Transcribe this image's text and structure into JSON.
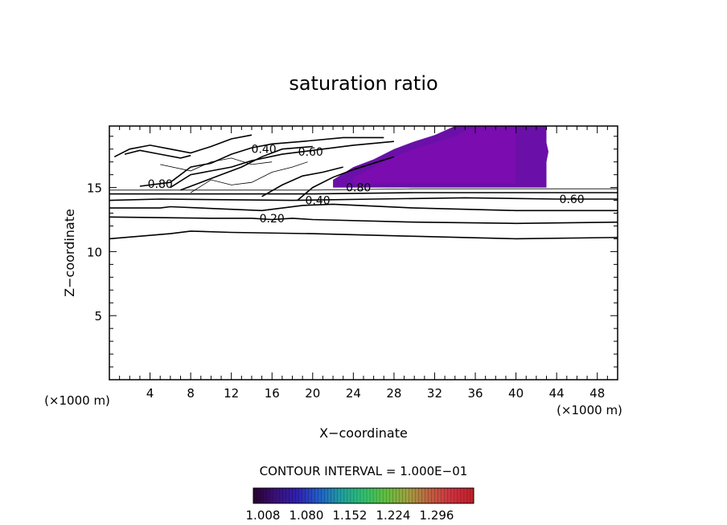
{
  "chart_data": {
    "type": "contour",
    "title": "saturation ratio",
    "xlabel": "X−coordinate",
    "ylabel": "Z−coordinate",
    "x_unit_left": "(×1000 m)",
    "x_unit_right": "(×1000 m)",
    "xlim": [
      0,
      50
    ],
    "ylim": [
      0,
      19.8
    ],
    "xticks": [
      4,
      8,
      12,
      16,
      20,
      24,
      28,
      32,
      36,
      40,
      44,
      48
    ],
    "yticks": [
      5,
      10,
      15
    ],
    "contour_interval_text": "CONTOUR INTERVAL = 1.000E−01",
    "contour_labels": [
      {
        "text": "0.40",
        "x": 15.2,
        "z": 18.0
      },
      {
        "text": "0.60",
        "x": 19.8,
        "z": 17.8
      },
      {
        "text": "0.80",
        "x": 5.0,
        "z": 15.3
      },
      {
        "text": "0.80",
        "x": 24.5,
        "z": 15.0
      },
      {
        "text": "0.40",
        "x": 20.5,
        "z": 14.0
      },
      {
        "text": "0.20",
        "x": 16.0,
        "z": 12.6
      },
      {
        "text": "0.60",
        "x": 45.5,
        "z": 14.1
      }
    ],
    "contour_lines": [
      {
        "level": 0.2,
        "points": [
          [
            0,
            12.7
          ],
          [
            10,
            12.6
          ],
          [
            14,
            12.6
          ],
          [
            16,
            12.5
          ],
          [
            18,
            12.6
          ],
          [
            20,
            12.5
          ],
          [
            30,
            12.3
          ],
          [
            40,
            12.2
          ],
          [
            50,
            12.3
          ]
        ]
      },
      {
        "level": 0.2,
        "points": [
          [
            0,
            11.0
          ],
          [
            6,
            11.4
          ],
          [
            8,
            11.6
          ],
          [
            12,
            11.5
          ],
          [
            20,
            11.4
          ],
          [
            30,
            11.2
          ],
          [
            40,
            11.0
          ],
          [
            50,
            11.1
          ]
        ]
      },
      {
        "level": 0.4,
        "points": [
          [
            0,
            13.4
          ],
          [
            5,
            13.4
          ],
          [
            6,
            13.5
          ],
          [
            15,
            13.2
          ],
          [
            19,
            13.6
          ],
          [
            22,
            13.7
          ],
          [
            30,
            13.4
          ],
          [
            40,
            13.2
          ],
          [
            50,
            13.2
          ]
        ]
      },
      {
        "level": 0.6,
        "points": [
          [
            0,
            14.0
          ],
          [
            5,
            14.1
          ],
          [
            18,
            14.0
          ],
          [
            26,
            14.1
          ],
          [
            35,
            14.2
          ],
          [
            44,
            14.1
          ],
          [
            50,
            14.1
          ]
        ]
      },
      {
        "level": 0.8,
        "points": [
          [
            0,
            14.5
          ],
          [
            5,
            14.5
          ],
          [
            20,
            14.5
          ],
          [
            30,
            14.6
          ],
          [
            40,
            14.6
          ],
          [
            50,
            14.6
          ]
        ]
      },
      {
        "level": 0.9,
        "points": [
          [
            0,
            14.8
          ],
          [
            20,
            14.8
          ],
          [
            30,
            14.9
          ],
          [
            40,
            14.9
          ],
          [
            50,
            14.9
          ]
        ]
      },
      {
        "level": 0.8,
        "points": [
          [
            3,
            15.1
          ],
          [
            6,
            15.4
          ],
          [
            8,
            16.6
          ],
          [
            10,
            16.9
          ],
          [
            12,
            17.6
          ],
          [
            14,
            18.1
          ],
          [
            16,
            18.4
          ],
          [
            19,
            18.6
          ],
          [
            23,
            18.9
          ],
          [
            27,
            18.9
          ]
        ]
      },
      {
        "level": 0.6,
        "points": [
          [
            6,
            15.0
          ],
          [
            8,
            16.0
          ],
          [
            10,
            16.3
          ],
          [
            12,
            16.6
          ],
          [
            14,
            17.1
          ],
          [
            17,
            17.6
          ],
          [
            20,
            17.9
          ],
          [
            24,
            18.3
          ],
          [
            28,
            18.6
          ]
        ]
      },
      {
        "level": 0.4,
        "points": [
          [
            7,
            14.8
          ],
          [
            9,
            15.4
          ],
          [
            11,
            16.0
          ],
          [
            13,
            16.6
          ],
          [
            15,
            17.4
          ],
          [
            17,
            18.0
          ],
          [
            20,
            18.2
          ]
        ]
      },
      {
        "level": 0.6,
        "points": [
          [
            18.5,
            14.0
          ],
          [
            20,
            15.0
          ],
          [
            22,
            15.8
          ],
          [
            24,
            16.4
          ],
          [
            26,
            16.9
          ],
          [
            28,
            17.4
          ]
        ]
      },
      {
        "level": 0.4,
        "points": [
          [
            15,
            14.3
          ],
          [
            17,
            15.2
          ],
          [
            19,
            15.9
          ],
          [
            21,
            16.2
          ],
          [
            23,
            16.6
          ]
        ]
      },
      {
        "level": 0.6,
        "points": [
          [
            0.5,
            17.4
          ],
          [
            2,
            18.0
          ],
          [
            4,
            18.3
          ],
          [
            6,
            18.0
          ],
          [
            8,
            17.7
          ],
          [
            10,
            18.2
          ],
          [
            12,
            18.8
          ],
          [
            14,
            19.1
          ]
        ]
      },
      {
        "level": 0.8,
        "points": [
          [
            1.5,
            17.6
          ],
          [
            3,
            17.9
          ],
          [
            5,
            17.6
          ],
          [
            7,
            17.3
          ],
          [
            8,
            17.5
          ]
        ]
      },
      {
        "level": 0.5,
        "points": [
          [
            8,
            14.6
          ],
          [
            10,
            15.6
          ],
          [
            12,
            15.2
          ],
          [
            14,
            15.4
          ],
          [
            16,
            16.2
          ],
          [
            18,
            16.6
          ],
          [
            19.5,
            17.0
          ]
        ]
      },
      {
        "level": 0.3,
        "points": [
          [
            5,
            16.8
          ],
          [
            8,
            16.3
          ],
          [
            10,
            17.0
          ],
          [
            12,
            17.3
          ],
          [
            14,
            16.8
          ],
          [
            16,
            17.0
          ]
        ]
      }
    ],
    "shaded_region": {
      "description_levels": "saturation ratio > 1",
      "outline": [
        [
          22,
          15.6
        ],
        [
          24,
          16.6
        ],
        [
          26,
          17.2
        ],
        [
          28,
          18.0
        ],
        [
          30,
          18.6
        ],
        [
          32,
          19.1
        ],
        [
          34,
          19.8
        ],
        [
          43,
          19.8
        ],
        [
          43,
          18.5
        ],
        [
          43.2,
          17.8
        ],
        [
          43,
          17.0
        ],
        [
          43,
          15.0
        ],
        [
          30,
          15.0
        ],
        [
          22,
          15.0
        ]
      ],
      "inner": [
        [
          24,
          15.8
        ],
        [
          26,
          16.6
        ],
        [
          28,
          17.4
        ],
        [
          30,
          18.0
        ],
        [
          32,
          18.5
        ],
        [
          34,
          19.0
        ],
        [
          36,
          19.8
        ],
        [
          40,
          19.8
        ],
        [
          40,
          15.3
        ],
        [
          24,
          15.3
        ]
      ]
    },
    "colorbar": {
      "ticks": [
        "1.008",
        "1.080",
        "1.152",
        "1.224",
        "1.296"
      ],
      "colors": [
        "#2a0030",
        "#3a1078",
        "#3020b0",
        "#2060c8",
        "#20a0a0",
        "#30c070",
        "#60c040",
        "#a0a040",
        "#c06040",
        "#d03040",
        "#c02028"
      ]
    }
  }
}
